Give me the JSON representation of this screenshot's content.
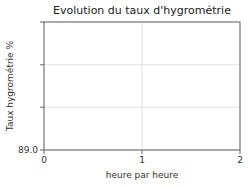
{
  "chart_data": {
    "type": "line",
    "title": "Evolution du taux d'hygrométrie",
    "xlabel": "heure par heure",
    "ylabel": "Taux hygrométrie %",
    "xlim": [
      0,
      2
    ],
    "ylim": [
      89.0,
      92.5
    ],
    "xticks": [
      0,
      1,
      2
    ],
    "yticks": [
      {
        "value": 89.0,
        "label": "89.0"
      },
      {
        "value": 90.17,
        "label": null
      },
      {
        "value": 91.33,
        "label": null
      },
      {
        "value": 92.5,
        "label": null
      }
    ],
    "grid": true
  }
}
